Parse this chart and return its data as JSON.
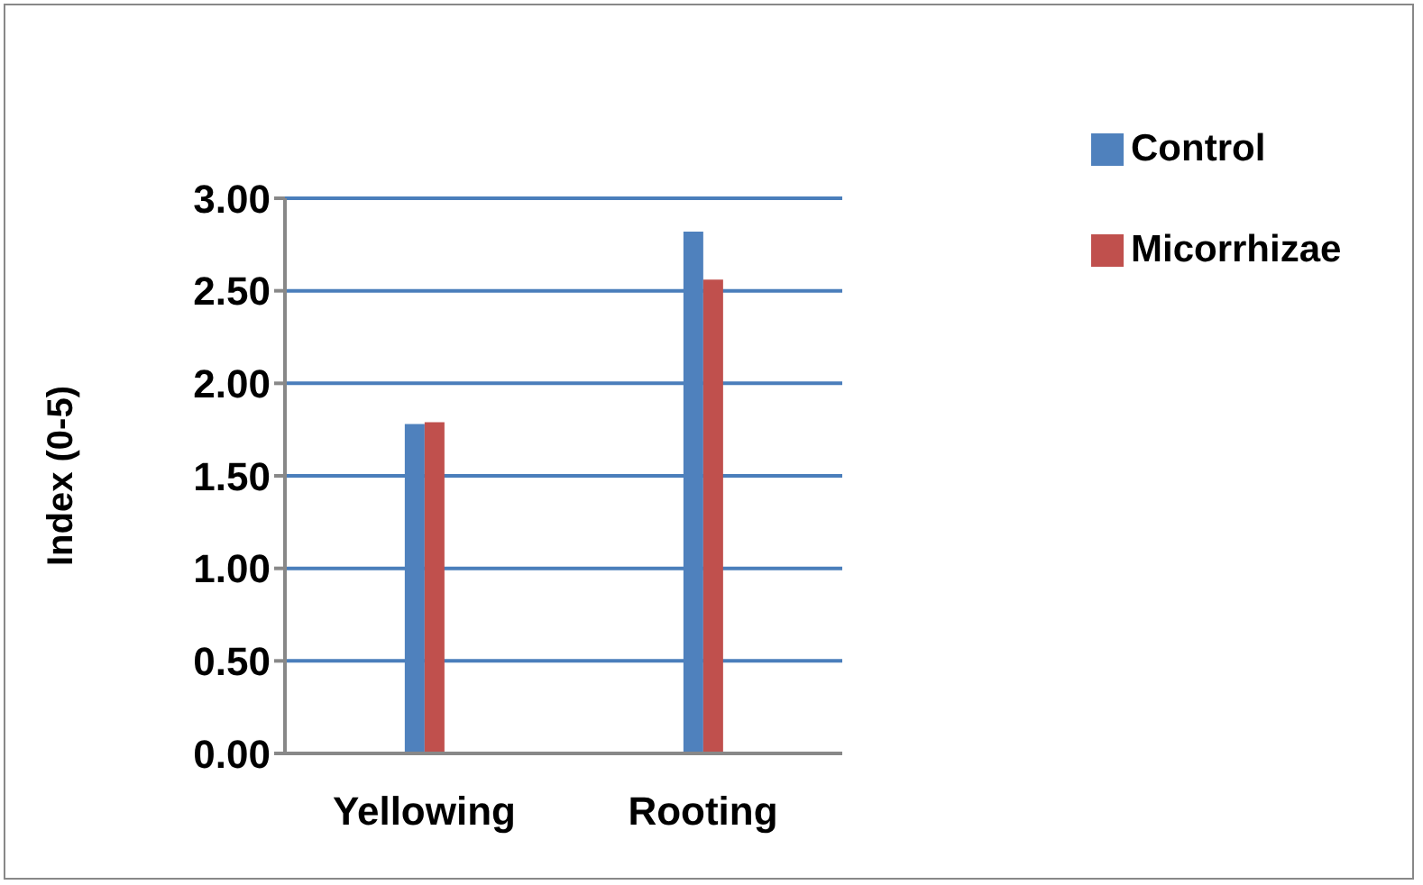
{
  "chart_data": {
    "type": "bar",
    "ylabel": "Index (0-5)",
    "categories": [
      "Yellowing",
      "Rooting"
    ],
    "series": [
      {
        "name": "Control",
        "color": "#4f81bd",
        "values": [
          1.78,
          2.82
        ]
      },
      {
        "name": "Micorrhizae",
        "color": "#c0504d",
        "values": [
          1.79,
          2.56
        ]
      }
    ],
    "ylim": [
      0,
      3
    ],
    "yticks": [
      {
        "value": 0,
        "label": "0.00"
      },
      {
        "value": 0.5,
        "label": "0.50"
      },
      {
        "value": 1,
        "label": "1.00"
      },
      {
        "value": 1.5,
        "label": "1.50"
      },
      {
        "value": 2,
        "label": "2.00"
      },
      {
        "value": 2.5,
        "label": "2.50"
      },
      {
        "value": 3,
        "label": "3.00"
      }
    ],
    "grid": "y",
    "legend": "top right"
  }
}
